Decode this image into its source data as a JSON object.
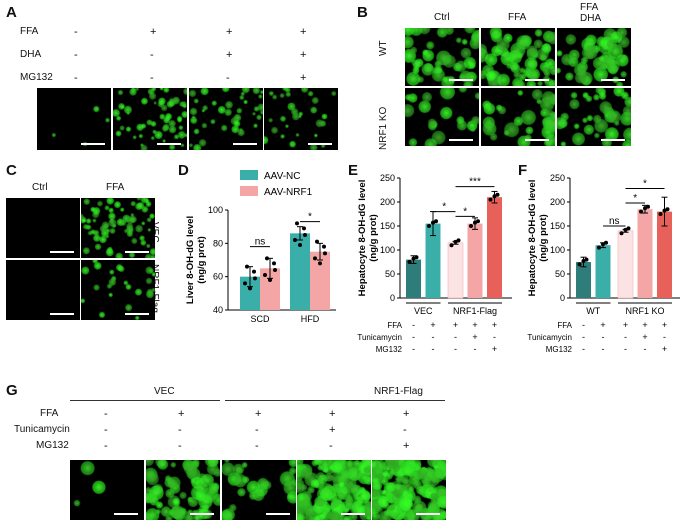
{
  "panels": {
    "A": {
      "label": "A",
      "row_labels": [
        "FFA",
        "DHA",
        "MG132"
      ],
      "signs": [
        [
          "-",
          "+",
          "+",
          "+"
        ],
        [
          "-",
          "-",
          "+",
          "+"
        ],
        [
          "-",
          "-",
          "-",
          "+"
        ]
      ]
    },
    "B": {
      "label": "B",
      "col_labels": [
        "Ctrl",
        "FFA",
        "FFA\nDHA"
      ],
      "col_label_ffa_dha": [
        "FFA",
        "DHA"
      ],
      "row_labels": [
        "WT",
        "NRF1 KO"
      ]
    },
    "C": {
      "label": "C",
      "col_labels": [
        "Ctrl",
        "FFA"
      ],
      "row_labels": [
        "VEC",
        "NRF1-Flag"
      ]
    },
    "G": {
      "label": "G",
      "group_labels": [
        "VEC",
        "NRF1-Flag"
      ],
      "row_labels": [
        "FFA",
        "Tunicamycin",
        "MG132"
      ],
      "signs": [
        [
          "-",
          "+",
          "+",
          "+",
          "+"
        ],
        [
          "-",
          "-",
          "-",
          "+",
          "-"
        ],
        [
          "-",
          "-",
          "-",
          "-",
          "+"
        ]
      ]
    }
  },
  "chart_data": [
    {
      "panel": "D",
      "type": "bar",
      "ylabel": "Liver 8-OH-dG level\n(ng/g prot)",
      "ylabel_lines": [
        "Liver 8-OH-dG level",
        "(ng/g prot)"
      ],
      "ylim": [
        40,
        100
      ],
      "yticks": [
        40,
        60,
        80,
        100
      ],
      "categories": [
        "SCD",
        "HFD"
      ],
      "legend_placement": "top",
      "series": [
        {
          "name": "AAV-NC",
          "color": "#3aafa9",
          "values": [
            60,
            86
          ],
          "err": [
            6,
            4
          ]
        },
        {
          "name": "AAV-NRF1",
          "color": "#f4a6a6",
          "values": [
            65,
            75
          ],
          "err": [
            6,
            5
          ]
        }
      ],
      "significance": [
        {
          "group": "SCD",
          "text": "ns"
        },
        {
          "group": "HFD",
          "text": "*"
        }
      ]
    },
    {
      "panel": "E",
      "type": "bar",
      "ylabel": "Hepatocyte 8-OH-dG level\n(ng/g prot)",
      "ylabel_lines": [
        "Hepatocyte 8-OH-dG level",
        "(ng/g prot)"
      ],
      "ylim": [
        0,
        250
      ],
      "yticks": [
        0,
        50,
        100,
        150,
        200,
        250
      ],
      "values": [
        80,
        155,
        115,
        155,
        210
      ],
      "err": [
        8,
        25,
        3,
        12,
        12
      ],
      "colors": [
        "#2e7d7a",
        "#3aafa9",
        "#fbe3e3",
        "#f4a6a6",
        "#e8605a"
      ],
      "group_labels": [
        "VEC",
        "NRF1-Flag"
      ],
      "condition_rows": [
        "FFA",
        "Tunicamycin",
        "MG132"
      ],
      "signs": [
        [
          "-",
          "+",
          "+",
          "+",
          "+"
        ],
        [
          "-",
          "-",
          "-",
          "+",
          "-"
        ],
        [
          "-",
          "-",
          "-",
          "-",
          "+"
        ]
      ],
      "significance": [
        "*",
        "*",
        "***"
      ]
    },
    {
      "panel": "F",
      "type": "bar",
      "ylabel": "Hepatocyte 8-OH-dG level\n(ng/g prot)",
      "ylabel_lines": [
        "Hepatocyte 8-OH-dG level",
        "(ng/g prot)"
      ],
      "ylim": [
        0,
        250
      ],
      "yticks": [
        0,
        50,
        100,
        150,
        200,
        250
      ],
      "values": [
        75,
        110,
        140,
        185,
        180
      ],
      "err": [
        10,
        5,
        3,
        8,
        30
      ],
      "colors": [
        "#2e7d7a",
        "#3aafa9",
        "#fbe3e3",
        "#f4a6a6",
        "#e8605a"
      ],
      "group_labels": [
        "WT",
        "NRF1 KO"
      ],
      "condition_rows": [
        "FFA",
        "Tunicamycin",
        "MG132"
      ],
      "signs": [
        [
          "-",
          "+",
          "+",
          "+",
          "+"
        ],
        [
          "-",
          "-",
          "-",
          "+",
          "-"
        ],
        [
          "-",
          "-",
          "-",
          "-",
          "+"
        ]
      ],
      "significance": [
        "ns",
        "*",
        "*"
      ]
    }
  ]
}
